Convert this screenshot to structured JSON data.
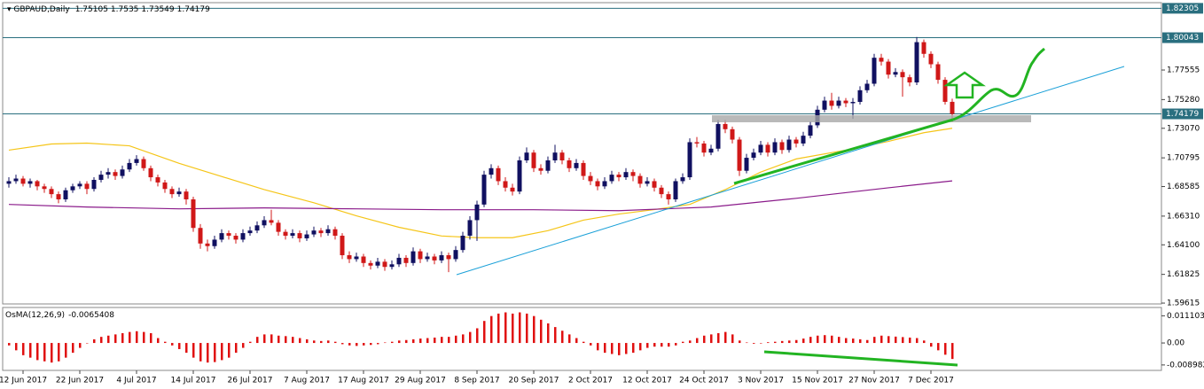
{
  "chart_data": {
    "type": "candlestick",
    "series": [
      {
        "name": "GBPAUD,Daily",
        "up_color": "#101060",
        "down_color": "#d01818",
        "ohlc": [
          [
            1.688,
            1.693,
            1.685,
            1.69
          ],
          [
            1.69,
            1.695,
            1.688,
            1.692
          ],
          [
            1.692,
            1.694,
            1.686,
            1.688
          ],
          [
            1.688,
            1.692,
            1.685,
            1.69
          ],
          [
            1.69,
            1.691,
            1.683,
            1.686
          ],
          [
            1.686,
            1.688,
            1.681,
            1.684
          ],
          [
            1.684,
            1.686,
            1.677,
            1.68
          ],
          [
            1.68,
            1.682,
            1.673,
            1.676
          ],
          [
            1.676,
            1.685,
            1.674,
            1.683
          ],
          [
            1.683,
            1.688,
            1.681,
            1.686
          ],
          [
            1.686,
            1.69,
            1.684,
            1.688
          ],
          [
            1.688,
            1.69,
            1.68,
            1.684
          ],
          [
            1.684,
            1.693,
            1.682,
            1.691
          ],
          [
            1.691,
            1.698,
            1.689,
            1.695
          ],
          [
            1.695,
            1.7,
            1.692,
            1.697
          ],
          [
            1.697,
            1.699,
            1.691,
            1.694
          ],
          [
            1.694,
            1.702,
            1.692,
            1.699
          ],
          [
            1.699,
            1.707,
            1.697,
            1.704
          ],
          [
            1.704,
            1.71,
            1.702,
            1.707
          ],
          [
            1.707,
            1.709,
            1.698,
            1.7
          ],
          [
            1.7,
            1.702,
            1.69,
            1.693
          ],
          [
            1.693,
            1.695,
            1.686,
            1.689
          ],
          [
            1.689,
            1.691,
            1.681,
            1.684
          ],
          [
            1.684,
            1.686,
            1.677,
            1.68
          ],
          [
            1.68,
            1.685,
            1.678,
            1.682
          ],
          [
            1.682,
            1.684,
            1.672,
            1.676
          ],
          [
            1.676,
            1.678,
            1.651,
            1.654
          ],
          [
            1.654,
            1.657,
            1.638,
            1.642
          ],
          [
            1.642,
            1.645,
            1.636,
            1.64
          ],
          [
            1.64,
            1.648,
            1.638,
            1.645
          ],
          [
            1.645,
            1.653,
            1.643,
            1.65
          ],
          [
            1.65,
            1.652,
            1.645,
            1.648
          ],
          [
            1.648,
            1.65,
            1.642,
            1.645
          ],
          [
            1.645,
            1.653,
            1.643,
            1.65
          ],
          [
            1.65,
            1.655,
            1.648,
            1.652
          ],
          [
            1.652,
            1.659,
            1.65,
            1.656
          ],
          [
            1.656,
            1.663,
            1.654,
            1.66
          ],
          [
            1.66,
            1.668,
            1.656,
            1.658
          ],
          [
            1.658,
            1.66,
            1.648,
            1.651
          ],
          [
            1.651,
            1.653,
            1.645,
            1.648
          ],
          [
            1.648,
            1.653,
            1.646,
            1.65
          ],
          [
            1.65,
            1.652,
            1.643,
            1.646
          ],
          [
            1.646,
            1.652,
            1.644,
            1.649
          ],
          [
            1.649,
            1.655,
            1.647,
            1.652
          ],
          [
            1.652,
            1.654,
            1.647,
            1.65
          ],
          [
            1.65,
            1.656,
            1.648,
            1.653
          ],
          [
            1.653,
            1.655,
            1.645,
            1.648
          ],
          [
            1.648,
            1.65,
            1.63,
            1.633
          ],
          [
            1.633,
            1.636,
            1.627,
            1.63
          ],
          [
            1.63,
            1.635,
            1.628,
            1.632
          ],
          [
            1.632,
            1.634,
            1.624,
            1.627
          ],
          [
            1.627,
            1.629,
            1.622,
            1.625
          ],
          [
            1.625,
            1.631,
            1.623,
            1.628
          ],
          [
            1.628,
            1.63,
            1.621,
            1.624
          ],
          [
            1.624,
            1.629,
            1.622,
            1.626
          ],
          [
            1.626,
            1.634,
            1.624,
            1.631
          ],
          [
            1.631,
            1.633,
            1.624,
            1.627
          ],
          [
            1.627,
            1.639,
            1.625,
            1.636
          ],
          [
            1.636,
            1.638,
            1.627,
            1.63
          ],
          [
            1.63,
            1.635,
            1.628,
            1.632
          ],
          [
            1.632,
            1.634,
            1.626,
            1.629
          ],
          [
            1.629,
            1.636,
            1.627,
            1.633
          ],
          [
            1.633,
            1.635,
            1.62,
            1.63
          ],
          [
            1.63,
            1.64,
            1.628,
            1.637
          ],
          [
            1.637,
            1.651,
            1.635,
            1.648
          ],
          [
            1.648,
            1.663,
            1.645,
            1.66
          ],
          [
            1.66,
            1.675,
            1.644,
            1.672
          ],
          [
            1.672,
            1.698,
            1.67,
            1.695
          ],
          [
            1.695,
            1.703,
            1.692,
            1.7
          ],
          [
            1.7,
            1.702,
            1.687,
            1.69
          ],
          [
            1.69,
            1.693,
            1.682,
            1.685
          ],
          [
            1.685,
            1.688,
            1.679,
            1.682
          ],
          [
            1.682,
            1.709,
            1.68,
            1.706
          ],
          [
            1.706,
            1.716,
            1.704,
            1.712
          ],
          [
            1.712,
            1.714,
            1.697,
            1.7
          ],
          [
            1.7,
            1.703,
            1.695,
            1.698
          ],
          [
            1.698,
            1.709,
            1.696,
            1.706
          ],
          [
            1.706,
            1.718,
            1.704,
            1.712
          ],
          [
            1.712,
            1.714,
            1.703,
            1.706
          ],
          [
            1.706,
            1.708,
            1.697,
            1.7
          ],
          [
            1.7,
            1.707,
            1.698,
            1.704
          ],
          [
            1.704,
            1.706,
            1.691,
            1.694
          ],
          [
            1.694,
            1.697,
            1.687,
            1.69
          ],
          [
            1.69,
            1.692,
            1.683,
            1.686
          ],
          [
            1.686,
            1.693,
            1.684,
            1.69
          ],
          [
            1.69,
            1.698,
            1.688,
            1.695
          ],
          [
            1.695,
            1.697,
            1.69,
            1.693
          ],
          [
            1.693,
            1.7,
            1.691,
            1.697
          ],
          [
            1.697,
            1.699,
            1.69,
            1.694
          ],
          [
            1.694,
            1.696,
            1.685,
            1.688
          ],
          [
            1.688,
            1.693,
            1.686,
            1.69
          ],
          [
            1.69,
            1.692,
            1.682,
            1.685
          ],
          [
            1.685,
            1.687,
            1.677,
            1.68
          ],
          [
            1.68,
            1.682,
            1.672,
            1.676
          ],
          [
            1.676,
            1.692,
            1.674,
            1.69
          ],
          [
            1.69,
            1.696,
            1.688,
            1.693
          ],
          [
            1.693,
            1.723,
            1.691,
            1.72
          ],
          [
            1.72,
            1.724,
            1.716,
            1.719
          ],
          [
            1.719,
            1.721,
            1.709,
            1.712
          ],
          [
            1.712,
            1.718,
            1.71,
            1.715
          ],
          [
            1.715,
            1.737,
            1.713,
            1.734
          ],
          [
            1.734,
            1.737,
            1.727,
            1.73
          ],
          [
            1.73,
            1.732,
            1.719,
            1.722
          ],
          [
            1.722,
            1.724,
            1.694,
            1.698
          ],
          [
            1.698,
            1.711,
            1.696,
            1.708
          ],
          [
            1.708,
            1.715,
            1.706,
            1.712
          ],
          [
            1.712,
            1.721,
            1.71,
            1.718
          ],
          [
            1.718,
            1.72,
            1.709,
            1.712
          ],
          [
            1.712,
            1.723,
            1.71,
            1.72
          ],
          [
            1.72,
            1.722,
            1.711,
            1.714
          ],
          [
            1.714,
            1.725,
            1.712,
            1.722
          ],
          [
            1.722,
            1.724,
            1.716,
            1.719
          ],
          [
            1.719,
            1.728,
            1.717,
            1.725
          ],
          [
            1.725,
            1.736,
            1.723,
            1.733
          ],
          [
            1.733,
            1.748,
            1.731,
            1.745
          ],
          [
            1.745,
            1.755,
            1.743,
            1.752
          ],
          [
            1.752,
            1.758,
            1.745,
            1.748
          ],
          [
            1.748,
            1.755,
            1.746,
            1.752
          ],
          [
            1.752,
            1.754,
            1.747,
            1.75
          ],
          [
            1.75,
            1.754,
            1.738,
            1.751
          ],
          [
            1.751,
            1.763,
            1.749,
            1.76
          ],
          [
            1.76,
            1.768,
            1.758,
            1.765
          ],
          [
            1.765,
            1.788,
            1.763,
            1.785
          ],
          [
            1.785,
            1.788,
            1.779,
            1.782
          ],
          [
            1.782,
            1.784,
            1.769,
            1.772
          ],
          [
            1.772,
            1.777,
            1.77,
            1.774
          ],
          [
            1.774,
            1.776,
            1.755,
            1.77
          ],
          [
            1.77,
            1.772,
            1.763,
            1.766
          ],
          [
            1.766,
            1.801,
            1.764,
            1.797
          ],
          [
            1.797,
            1.799,
            1.785,
            1.788
          ],
          [
            1.788,
            1.79,
            1.777,
            1.78
          ],
          [
            1.78,
            1.782,
            1.765,
            1.768
          ],
          [
            1.768,
            1.77,
            1.749,
            1.75105
          ],
          [
            1.75105,
            1.7535,
            1.73549,
            1.74179
          ]
        ]
      }
    ],
    "categories": [
      null,
      null,
      "12 Jun 2017",
      null,
      null,
      null,
      null,
      null,
      null,
      null,
      "22 Jun 2017",
      null,
      null,
      null,
      null,
      null,
      null,
      null,
      "4 Jul 2017",
      null,
      null,
      null,
      null,
      null,
      null,
      null,
      "14 Jul 2017",
      null,
      null,
      null,
      null,
      null,
      null,
      null,
      "26 Jul 2017",
      null,
      null,
      null,
      null,
      null,
      null,
      null,
      "7 Aug 2017",
      null,
      null,
      null,
      null,
      null,
      null,
      null,
      "17 Aug 2017",
      null,
      null,
      null,
      null,
      null,
      null,
      null,
      "29 Aug 2017",
      null,
      null,
      null,
      null,
      null,
      null,
      null,
      "8 Sep 2017",
      null,
      null,
      null,
      null,
      null,
      null,
      null,
      "20 Sep 2017",
      null,
      null,
      null,
      null,
      null,
      null,
      null,
      "2 Oct 2017",
      null,
      null,
      null,
      null,
      null,
      null,
      null,
      "12 Oct 2017",
      null,
      null,
      null,
      null,
      null,
      null,
      null,
      "24 Oct 2017",
      null,
      null,
      null,
      null,
      null,
      null,
      null,
      "3 Nov 2017",
      null,
      null,
      null,
      null,
      null,
      null,
      null,
      "15 Nov 2017",
      null,
      null,
      null,
      null,
      null,
      null,
      null,
      "27 Nov 2017",
      null,
      null,
      null,
      null,
      null,
      null,
      null,
      "7 Dec 2017",
      null,
      null,
      null
    ],
    "ylim": [
      1.5955,
      1.8274
    ],
    "yticks": [
      1.77555,
      {
        "value": 1.7528,
        "label": "1.75280"
      },
      {
        "value": 1.7307,
        "label": "1.73070"
      },
      1.70795,
      1.68585,
      {
        "value": 1.6631,
        "label": "1.66310"
      },
      {
        "value": 1.641,
        "label": "1.64100"
      },
      1.61825,
      1.59615
    ],
    "levels": [
      1.82305,
      1.80043,
      1.74179
    ],
    "moving_averages": [
      {
        "color": "#f5c518",
        "index": [
          0,
          6,
          11,
          17,
          24,
          30,
          36,
          43,
          49,
          55,
          61,
          66,
          71,
          76,
          81,
          86,
          91,
          96,
          101,
          106,
          111,
          118,
          124,
          129,
          133
        ],
        "values": [
          1.7139,
          1.7186,
          1.7193,
          1.7172,
          1.7037,
          1.6936,
          1.6835,
          1.6734,
          1.6633,
          1.6545,
          1.6478,
          1.6465,
          1.6465,
          1.6519,
          1.66,
          1.6647,
          1.6681,
          1.6721,
          1.6835,
          1.697,
          1.7071,
          1.7139,
          1.7206,
          1.7273,
          1.7307
        ]
      },
      {
        "color": "#8a1a8a",
        "index": [
          0,
          11,
          24,
          36,
          49,
          61,
          74,
          86,
          99,
          111,
          124,
          133
        ],
        "values": [
          1.6721,
          1.6701,
          1.6687,
          1.6694,
          1.6687,
          1.668,
          1.668,
          1.6673,
          1.6701,
          1.6768,
          1.6849,
          1.6902
        ]
      }
    ],
    "indicator": {
      "name": "OsMA(12,26,9)",
      "color": "#e01010",
      "values": [
        -0.001,
        -0.003,
        -0.005,
        -0.006,
        -0.007,
        -0.0075,
        -0.008,
        -0.0075,
        -0.006,
        -0.004,
        -0.002,
        0.0,
        0.0015,
        0.0025,
        0.003,
        0.0035,
        0.004,
        0.0045,
        0.0048,
        0.0045,
        0.004,
        0.002,
        0.0005,
        -0.001,
        -0.0025,
        -0.004,
        -0.006,
        -0.0075,
        -0.008,
        -0.0078,
        -0.007,
        -0.006,
        -0.004,
        -0.002,
        0.0005,
        0.0025,
        0.0035,
        0.0035,
        0.003,
        0.0028,
        0.0025,
        0.002,
        0.0015,
        0.001,
        0.0008,
        0.001,
        0.0005,
        -0.0005,
        -0.001,
        -0.0012,
        -0.001,
        -0.0008,
        -0.0005,
        0.0002,
        0.0005,
        0.001,
        0.0012,
        0.0015,
        0.0018,
        0.002,
        0.0022,
        0.0025,
        0.0025,
        0.003,
        0.0035,
        0.0045,
        0.006,
        0.009,
        0.011,
        0.012,
        0.0125,
        0.012,
        0.0125,
        0.012,
        0.011,
        0.0095,
        0.008,
        0.0065,
        0.005,
        0.0035,
        0.002,
        0.0005,
        -0.001,
        -0.003,
        -0.004,
        -0.0045,
        -0.005,
        -0.0045,
        -0.004,
        -0.003,
        -0.002,
        -0.0015,
        -0.0015,
        -0.0015,
        -0.001,
        0.0005,
        0.001,
        0.002,
        0.003,
        0.0035,
        0.004,
        0.0045,
        0.0035,
        0.001,
        0.0002,
        -0.0003,
        -0.0002,
        0.0003,
        0.0005,
        0.0008,
        0.001,
        0.0012,
        0.0018,
        0.0025,
        0.003,
        0.0032,
        0.003,
        0.0025,
        0.002,
        0.0018,
        0.0015,
        0.0012,
        0.0025,
        0.003,
        0.0028,
        0.0026,
        0.0024,
        0.0022,
        0.002,
        0.001,
        -0.0015,
        -0.003,
        -0.0048,
        -0.0065408
      ],
      "ylim": [
        -0.0112,
        0.0145
      ],
      "yticks": [
        0.011103,
        {
          "value": 0,
          "label": "0.00"
        },
        -0.008982
      ]
    }
  }
}
